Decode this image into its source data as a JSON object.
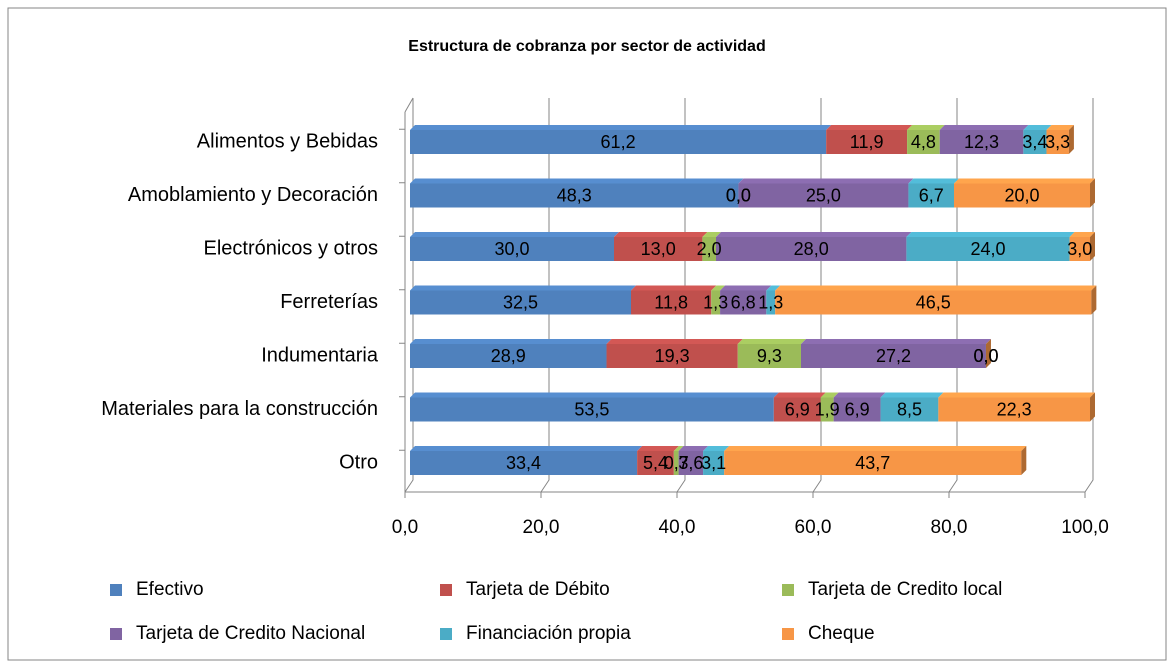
{
  "chart_data": {
    "type": "bar",
    "orientation": "horizontal",
    "stacked": true,
    "title": "Estructura de cobranza por sector de actividad",
    "categories": [
      "Alimentos y Bebidas",
      "Amoblamiento y Decoración",
      "Electrónicos y otros",
      "Ferreterías",
      "Indumentaria",
      "Materiales para la construcción",
      "Otro"
    ],
    "series": [
      {
        "name": "Efectivo",
        "color": "#4f81bd",
        "values": [
          61.2,
          48.3,
          30.0,
          32.5,
          28.9,
          53.5,
          33.4
        ],
        "value_labels": [
          "61,2",
          "48,3",
          "30,0",
          "32,5",
          "28,9",
          "53,5",
          "33,4"
        ]
      },
      {
        "name": "Tarjeta de Débito",
        "color": "#c0504d",
        "values": [
          11.9,
          0.0,
          13.0,
          11.8,
          19.3,
          6.9,
          5.4
        ],
        "value_labels": [
          "11,9",
          "0,0",
          "13,0",
          "11,8",
          "19,3",
          "6,9",
          "5,4"
        ]
      },
      {
        "name": "Tarjeta de Credito local",
        "color": "#9bbb59",
        "values": [
          4.8,
          0.0,
          2.0,
          1.3,
          9.3,
          1.9,
          0.7
        ],
        "value_labels": [
          "4,8",
          "0,0",
          "2,0",
          "1,3",
          "9,3",
          "1,9",
          "0,7"
        ]
      },
      {
        "name": "Tarjeta de Credito Nacional",
        "color": "#8064a2",
        "values": [
          12.3,
          25.0,
          28.0,
          6.8,
          27.2,
          6.9,
          3.6
        ],
        "value_labels": [
          "12,3",
          "25,0",
          "28,0",
          "6,8",
          "27,2",
          "6,9",
          "3,6"
        ]
      },
      {
        "name": "Financiación propia",
        "color": "#4bacc6",
        "values": [
          3.4,
          6.7,
          24.0,
          1.3,
          0.0,
          8.5,
          3.1
        ],
        "value_labels": [
          "3,4",
          "6,7",
          "24,0",
          "1,3",
          "0,0",
          "8,5",
          "3,1"
        ]
      },
      {
        "name": "Cheque",
        "color": "#f79646",
        "values": [
          3.3,
          20.0,
          3.0,
          46.5,
          0.0,
          22.3,
          43.7
        ],
        "value_labels": [
          "3,3",
          "20,0",
          "3,0",
          "46,5",
          "0,0",
          "22,3",
          "43,7"
        ]
      }
    ],
    "xlim": [
      0,
      100
    ],
    "xticks": [
      {
        "value": 0,
        "label": "0,0"
      },
      {
        "value": 20,
        "label": "20,0"
      },
      {
        "value": 40,
        "label": "40,0"
      },
      {
        "value": 60,
        "label": "60,0"
      },
      {
        "value": 80,
        "label": "80,0"
      },
      {
        "value": 100,
        "label": "100,0"
      }
    ],
    "grid": true,
    "legend": "bottom"
  }
}
